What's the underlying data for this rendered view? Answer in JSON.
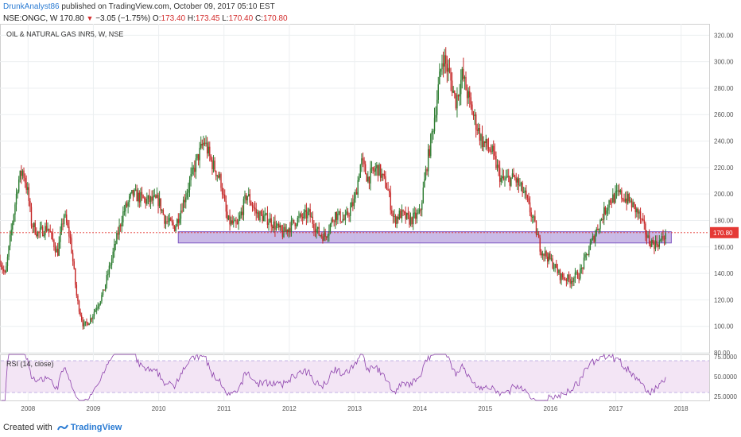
{
  "header": {
    "author": "DrunkAnalyst86",
    "published": "published on TradingView.com, October 09, 2017 05:10 EST",
    "symbol": "NSE:ONGC, W",
    "last": "170.80",
    "change": "−3.05 (−1.75%)",
    "open_label": "O:",
    "open": "173.40",
    "high_label": "H:",
    "high": "173.45",
    "low_label": "L:",
    "low": "170.40",
    "close_label": "C:",
    "close": "170.80"
  },
  "footer": {
    "created_with": "Created with",
    "brand": "TradingView"
  },
  "chart_data": [
    {
      "type": "candlestick",
      "title": "OIL & NATURAL GAS INR5, W, NSE",
      "ylim": [
        80,
        325
      ],
      "y_ticks": [
        "80.00",
        "100.00",
        "120.00",
        "140.00",
        "160.00",
        "180.00",
        "200.00",
        "220.00",
        "240.00",
        "260.00",
        "280.00",
        "300.00",
        "320.00"
      ],
      "x_ticks": [
        "2008",
        "2009",
        "2010",
        "2011",
        "2012",
        "2013",
        "2014",
        "2015",
        "2016",
        "2017",
        "2018"
      ],
      "xlim": [
        2007.57,
        2018.43
      ],
      "last_price": 170.8,
      "last_price_label": "170.80",
      "support_zone": {
        "y_low": 163,
        "y_high": 171.5,
        "x_start": 2010.3,
        "x_end": 2017.85
      },
      "colors": {
        "up": "#2e7d32",
        "down": "#c62828",
        "zone_fill": "#b39ddb",
        "zone_stroke": "#7e57c2",
        "price_line": "#e53935"
      },
      "path_keypoints": [
        [
          2007.57,
          150
        ],
        [
          2007.65,
          138
        ],
        [
          2007.75,
          175
        ],
        [
          2007.85,
          210
        ],
        [
          2007.92,
          218
        ],
        [
          2008.0,
          200
        ],
        [
          2008.05,
          178
        ],
        [
          2008.15,
          170
        ],
        [
          2008.3,
          175
        ],
        [
          2008.45,
          155
        ],
        [
          2008.55,
          185
        ],
        [
          2008.65,
          165
        ],
        [
          2008.75,
          120
        ],
        [
          2008.85,
          100
        ],
        [
          2008.95,
          105
        ],
        [
          2009.05,
          115
        ],
        [
          2009.15,
          125
        ],
        [
          2009.25,
          145
        ],
        [
          2009.35,
          165
        ],
        [
          2009.45,
          185
        ],
        [
          2009.6,
          200
        ],
        [
          2009.8,
          195
        ],
        [
          2010.0,
          195
        ],
        [
          2010.1,
          180
        ],
        [
          2010.25,
          175
        ],
        [
          2010.45,
          205
        ],
        [
          2010.6,
          228
        ],
        [
          2010.7,
          240
        ],
        [
          2010.8,
          225
        ],
        [
          2010.95,
          210
        ],
        [
          2011.05,
          180
        ],
        [
          2011.2,
          175
        ],
        [
          2011.35,
          200
        ],
        [
          2011.5,
          185
        ],
        [
          2011.7,
          180
        ],
        [
          2011.9,
          170
        ],
        [
          2012.0,
          175
        ],
        [
          2012.1,
          180
        ],
        [
          2012.3,
          185
        ],
        [
          2012.45,
          170
        ],
        [
          2012.55,
          168
        ],
        [
          2012.7,
          185
        ],
        [
          2012.85,
          180
        ],
        [
          2013.0,
          195
        ],
        [
          2013.1,
          225
        ],
        [
          2013.2,
          212
        ],
        [
          2013.35,
          220
        ],
        [
          2013.5,
          205
        ],
        [
          2013.6,
          180
        ],
        [
          2013.7,
          185
        ],
        [
          2013.85,
          180
        ],
        [
          2014.0,
          185
        ],
        [
          2014.1,
          220
        ],
        [
          2014.2,
          250
        ],
        [
          2014.35,
          305
        ],
        [
          2014.45,
          290
        ],
        [
          2014.55,
          270
        ],
        [
          2014.65,
          290
        ],
        [
          2014.8,
          262
        ],
        [
          2014.95,
          240
        ],
        [
          2015.1,
          232
        ],
        [
          2015.25,
          210
        ],
        [
          2015.45,
          212
        ],
        [
          2015.6,
          200
        ],
        [
          2015.75,
          178
        ],
        [
          2015.85,
          158
        ],
        [
          2016.0,
          150
        ],
        [
          2016.15,
          138
        ],
        [
          2016.3,
          135
        ],
        [
          2016.45,
          140
        ],
        [
          2016.6,
          160
        ],
        [
          2016.75,
          178
        ],
        [
          2016.9,
          195
        ],
        [
          2017.05,
          200
        ],
        [
          2017.2,
          195
        ],
        [
          2017.35,
          185
        ],
        [
          2017.5,
          165
        ],
        [
          2017.6,
          162
        ],
        [
          2017.7,
          165
        ],
        [
          2017.77,
          170.8
        ]
      ]
    },
    {
      "type": "line",
      "title": "RSI (14, close)",
      "ylim": [
        20,
        78
      ],
      "y_ticks": [
        "25.0000",
        "50.0000",
        "75.0000"
      ],
      "band": [
        30,
        70
      ],
      "colors": {
        "line": "#8e44ad",
        "band_fill": "#f3e5f5",
        "band_line": "#b39ddb"
      }
    }
  ]
}
